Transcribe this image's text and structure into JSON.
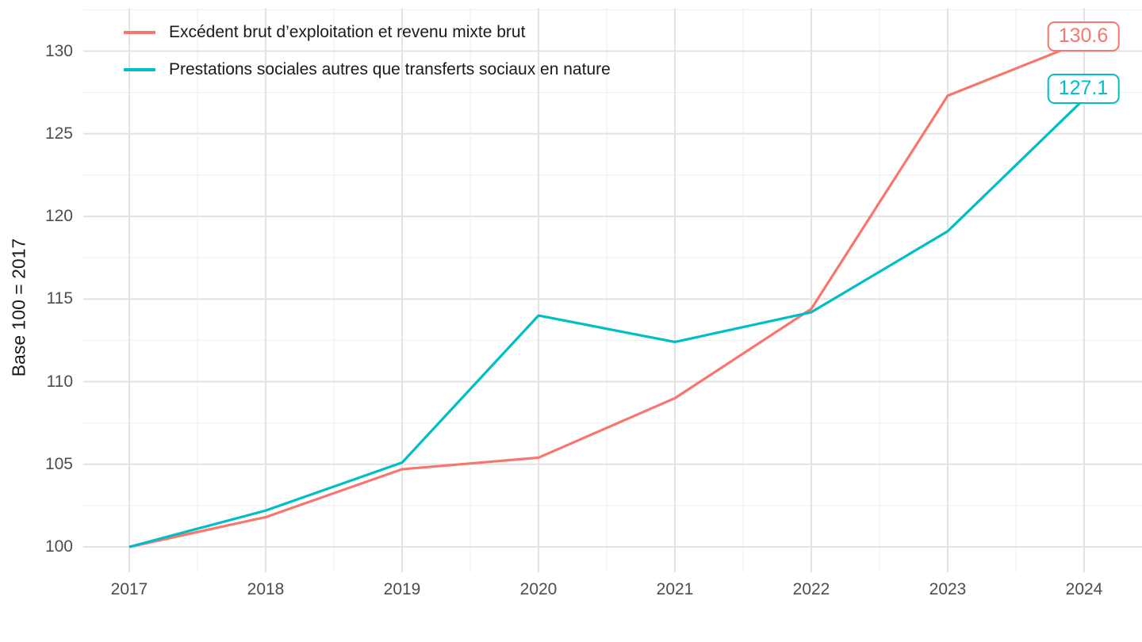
{
  "chart_data": {
    "type": "line",
    "title": "",
    "xlabel": "",
    "ylabel": "Base 100 = 2017",
    "categories": [
      "2017",
      "2018",
      "2019",
      "2020",
      "2021",
      "2022",
      "2023",
      "2024"
    ],
    "x_values": [
      2017,
      2018,
      2019,
      2020,
      2021,
      2022,
      2023,
      2024
    ],
    "y_ticks": [
      100,
      105,
      110,
      115,
      120,
      125,
      130
    ],
    "y_minor_ticks": [
      102.5,
      107.5,
      112.5,
      117.5,
      122.5,
      127.5,
      132.5
    ],
    "x_minor_ticks": [
      2017.5,
      2018.5,
      2019.5,
      2020.5,
      2021.5,
      2022.5,
      2023.5
    ],
    "ylim": [
      98.5,
      132.6
    ],
    "xlim": [
      2016.66,
      2024.42
    ],
    "grid": "major and minor, light grey on white, no axis lines",
    "legend_position": "inside top-left",
    "series": [
      {
        "name": "Excédent brut d’exploitation et revenu mixte brut",
        "color": "#F8766D",
        "values": [
          100.0,
          101.8,
          104.7,
          105.4,
          109.0,
          114.4,
          127.3,
          130.6
        ],
        "end_label": "130.6"
      },
      {
        "name": "Prestations sociales autres que transferts sociaux en nature",
        "color": "#00BFC4",
        "values": [
          100.0,
          102.2,
          105.1,
          114.0,
          112.4,
          114.2,
          119.1,
          127.1
        ],
        "end_label": "127.1"
      }
    ]
  },
  "colors": {
    "background": "#FFFFFF",
    "grid_major": "#E3E3E3",
    "grid_minor": "#F1F1F1",
    "tick_text": "#4D4D4D",
    "text": "#1A1A1A",
    "series_red": "#F8766D",
    "series_teal": "#00BFC4"
  }
}
